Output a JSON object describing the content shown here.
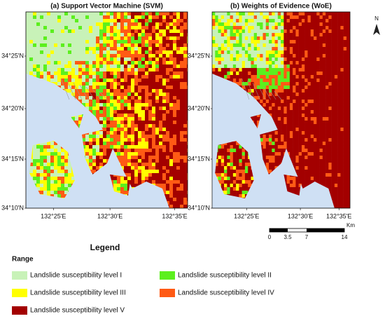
{
  "panels": [
    {
      "title": "(a) Support Vector Machine (SVM)",
      "lat_labels": [
        "34°25'N",
        "34°20'N",
        "34°15'N",
        "34°10'N"
      ],
      "lon_labels": [
        "132°25'E",
        "132°30'E",
        "132°35'E"
      ]
    },
    {
      "title": "(b) Weights of Evidence (WoE)",
      "lat_labels": [
        "34°25'N",
        "34°20'N",
        "34°15'N",
        "34°10'N"
      ],
      "lon_labels": [
        "132°25'E",
        "132°30'E",
        "132°35'E"
      ]
    }
  ],
  "north": "N",
  "scale_bar": {
    "unit": "Km",
    "labels": [
      "0",
      "3.5",
      "7",
      "14"
    ]
  },
  "legend": {
    "title": "Legend",
    "subtitle": "Range",
    "items": [
      {
        "label": "Landslide susceptibility level I",
        "color": "#c8f2b8"
      },
      {
        "label": "Landslide susceptibility level II",
        "color": "#5cef1e"
      },
      {
        "label": "Landslide susceptibility level III",
        "color": "#ffff00"
      },
      {
        "label": "Landslide susceptibility level IV",
        "color": "#ff5a14"
      },
      {
        "label": "Landslide susceptibility level V",
        "color": "#a30000"
      }
    ]
  }
}
